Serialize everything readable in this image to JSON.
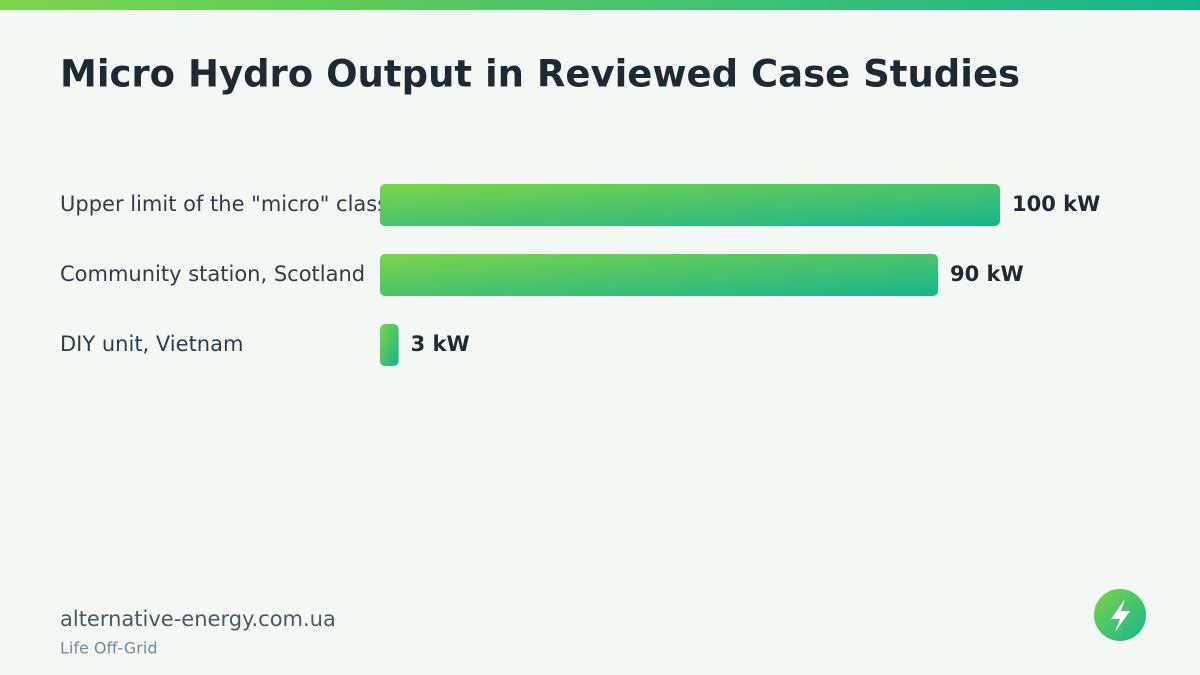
{
  "chart_data": {
    "type": "bar",
    "orientation": "horizontal",
    "title": "Micro Hydro Output in Reviewed Case Studies",
    "categories": [
      "Upper limit of the \"micro\" class",
      "Community station, Scotland",
      "DIY unit, Vietnam"
    ],
    "values": [
      100,
      90,
      3
    ],
    "value_labels": [
      "100 kW",
      "90 kW",
      "3 kW"
    ],
    "color": [
      "#7dd44a",
      "#17b48c"
    ]
  },
  "footer": {
    "site": "alternative-energy.com.ua",
    "tagline": "Life Off-Grid"
  }
}
